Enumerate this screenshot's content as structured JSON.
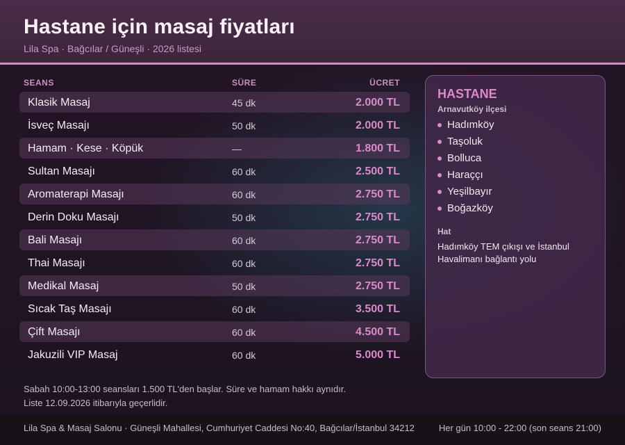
{
  "header": {
    "title": "Hastane için masaj fiyatları",
    "subtitle": "Lila Spa · Bağcılar / Güneşli · 2026 listesi"
  },
  "table": {
    "headers": {
      "session": "SEANS",
      "duration": "SÜRE",
      "price": "ÜCRET"
    },
    "rows": [
      {
        "name": "Klasik Masaj",
        "duration": "45 dk",
        "price": "2.000 TL"
      },
      {
        "name": "İsveç Masajı",
        "duration": "50 dk",
        "price": "2.000 TL"
      },
      {
        "name": "Hamam · Kese · Köpük",
        "duration": "—",
        "price": "1.800 TL"
      },
      {
        "name": "Sultan Masajı",
        "duration": "60 dk",
        "price": "2.500 TL"
      },
      {
        "name": "Aromaterapi Masajı",
        "duration": "60 dk",
        "price": "2.750 TL"
      },
      {
        "name": "Derin Doku Masajı",
        "duration": "50 dk",
        "price": "2.750 TL"
      },
      {
        "name": "Bali Masajı",
        "duration": "60 dk",
        "price": "2.750 TL"
      },
      {
        "name": "Thai Masajı",
        "duration": "60 dk",
        "price": "2.750 TL"
      },
      {
        "name": "Medikal Masaj",
        "duration": "50 dk",
        "price": "2.750 TL"
      },
      {
        "name": "Sıcak Taş Masajı",
        "duration": "60 dk",
        "price": "3.500 TL"
      },
      {
        "name": "Çift Masajı",
        "duration": "60 dk",
        "price": "4.500 TL"
      },
      {
        "name": "Jakuzili VIP Masaj",
        "duration": "60 dk",
        "price": "5.000 TL"
      }
    ]
  },
  "panel": {
    "title": "HASTANE",
    "subtitle": "Arnavutköy ilçesi",
    "areas": [
      "Hadımköy",
      "Taşoluk",
      "Bolluca",
      "Haraççı",
      "Yeşilbayır",
      "Boğazköy"
    ],
    "route_label": "Hat",
    "route_text": "Hadımköy TEM çıkışı ve İstanbul Havalimanı bağlantı yolu"
  },
  "notes": {
    "line1": "Sabah 10:00-13:00 seansları 1.500 TL'den başlar. Süre ve hamam hakkı aynıdır.",
    "line2": "Liste 12.09.2026 itibarıyla geçerlidir."
  },
  "footer": {
    "address": "Lila Spa & Masaj Salonu · Güneşli Mahallesi, Cumhuriyet Caddesi No:40, Bağcılar/İstanbul 34212",
    "hours": "Her gün 10:00 - 22:00 (son seans 21:00)"
  },
  "colors": {
    "accent": "#d98ac8",
    "header_border": "#c990bf",
    "header_bg": "#4a2d48",
    "panel_bg": "#402848"
  }
}
